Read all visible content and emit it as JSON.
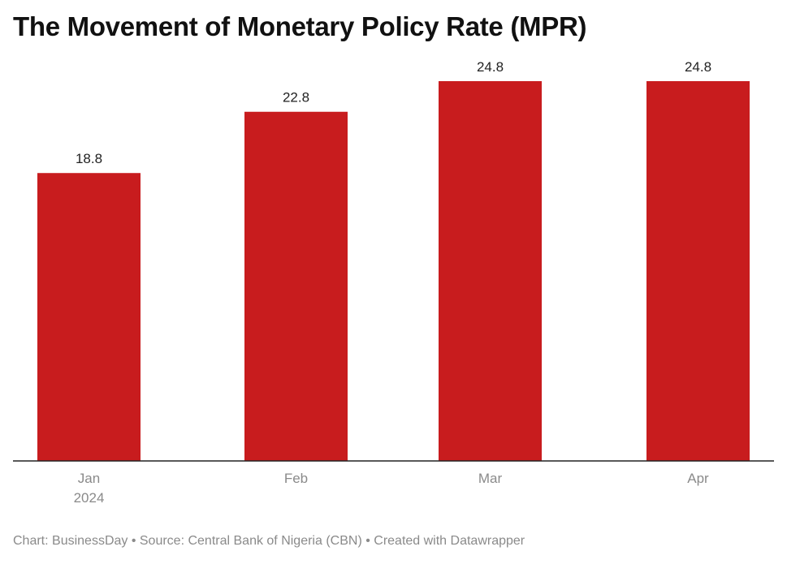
{
  "title": "The Movement of Monetary Policy Rate (MPR)",
  "footer": "Chart: BusinessDay • Source: Central Bank of Nigeria (CBN) • Created with Datawrapper",
  "colors": {
    "bar": "#c81c1e",
    "axis": "#222222",
    "label": "#222222",
    "tick": "#8a8a8a"
  },
  "chart_data": {
    "type": "bar",
    "title": "The Movement of Monetary Policy Rate (MPR)",
    "categories": [
      "Jan 2024",
      "Feb",
      "Mar",
      "Apr"
    ],
    "category_lines": [
      [
        "Jan",
        "2024"
      ],
      [
        "Feb"
      ],
      [
        "Mar"
      ],
      [
        "Apr"
      ]
    ],
    "values": [
      18.8,
      22.8,
      24.8,
      24.8
    ],
    "value_labels": [
      "18.8",
      "22.8",
      "24.8",
      "24.8"
    ],
    "xlabel": "",
    "ylabel": "",
    "ylim": [
      0,
      24.8
    ],
    "grid": false,
    "legend": "none"
  }
}
